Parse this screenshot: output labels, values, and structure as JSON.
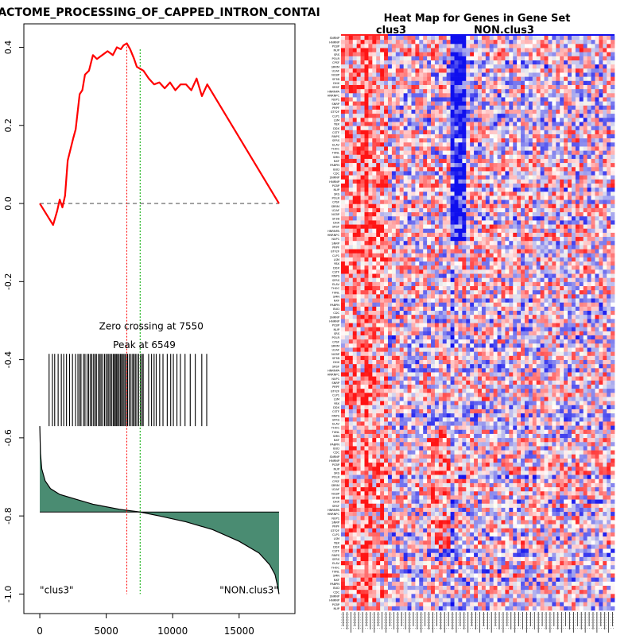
{
  "chart_data": [
    {
      "type": "line",
      "title": "ACTOME_PROCESSING_OF_CAPPED_INTRON_CONTAI",
      "xlabel": "",
      "ylabel": "",
      "xlim": [
        -1200,
        19200
      ],
      "ylim": [
        -1.05,
        0.46
      ],
      "x_ticks": [
        0,
        5000,
        10000,
        15000
      ],
      "x_tick_labels": [
        "0",
        "5000",
        "10000",
        "15000"
      ],
      "y_ticks": [
        0.4,
        0.2,
        0.0,
        -0.2,
        -0.4,
        -0.6,
        -0.8,
        -1.0
      ],
      "y_tick_labels": [
        "0.4",
        "0.2",
        "0.0",
        "-0.2",
        "-0.4",
        "-0.6",
        "-0.8",
        "-1.0"
      ],
      "running_es": {
        "name": "Enrichment score",
        "color": "#ff0000",
        "x": [
          0,
          1000,
          1300,
          1500,
          1700,
          1900,
          2100,
          2500,
          2700,
          3000,
          3200,
          3400,
          3700,
          4000,
          4300,
          4700,
          5100,
          5500,
          5800,
          6100,
          6300,
          6549,
          6800,
          7100,
          7300,
          7550,
          7800,
          8200,
          8600,
          9000,
          9400,
          9800,
          10200,
          10600,
          11000,
          11400,
          11800,
          12200,
          12600,
          18000
        ],
        "y": [
          0.0,
          -0.055,
          -0.02,
          0.01,
          -0.01,
          0.02,
          0.11,
          0.165,
          0.19,
          0.28,
          0.29,
          0.33,
          0.34,
          0.38,
          0.37,
          0.38,
          0.39,
          0.38,
          0.4,
          0.395,
          0.405,
          0.41,
          0.395,
          0.37,
          0.35,
          0.345,
          0.34,
          0.32,
          0.305,
          0.31,
          0.295,
          0.31,
          0.29,
          0.305,
          0.305,
          0.29,
          0.32,
          0.275,
          0.305,
          0.0
        ]
      },
      "baseline": {
        "y": 0.0,
        "style": "dashed"
      },
      "peak": {
        "x": 6549,
        "label": "Peak at 6549",
        "color": "#ff0000"
      },
      "zero_crossing": {
        "x": 7550,
        "label": "Zero crossing at 7550",
        "color": "#00aa00"
      },
      "hits": {
        "y_range": [
          -0.57,
          -0.385
        ],
        "positions": [
          700,
          950,
          1120,
          1380,
          1620,
          1800,
          2010,
          2240,
          2460,
          2690,
          2870,
          3000,
          3100,
          3290,
          3400,
          3560,
          3680,
          3810,
          3920,
          4050,
          4160,
          4260,
          4400,
          4520,
          4610,
          4730,
          4870,
          4980,
          5090,
          5190,
          5290,
          5400,
          5520,
          5610,
          5690,
          5780,
          5860,
          5960,
          6060,
          6140,
          6240,
          6330,
          6420,
          6530,
          6610,
          6730,
          6860,
          6990,
          7080,
          7190,
          7300,
          7440,
          7570,
          7690,
          7780,
          8190,
          8410,
          8600,
          8760,
          9020,
          9270,
          9590,
          9850,
          10050,
          10320,
          10580,
          10930,
          11320,
          11700,
          12190,
          12560
        ]
      },
      "ranked_metric": {
        "fill": "#4a8c72",
        "baseline_y": -0.79,
        "crossing_x": 7550,
        "x": [
          0,
          50,
          150,
          400,
          800,
          1500,
          2500,
          4000,
          6000,
          7550,
          9000,
          11000,
          13000,
          15000,
          16500,
          17300,
          17700,
          17900,
          18000
        ],
        "y": [
          -0.57,
          -0.64,
          -0.68,
          -0.71,
          -0.73,
          -0.745,
          -0.755,
          -0.77,
          -0.783,
          -0.79,
          -0.8,
          -0.815,
          -0.835,
          -0.865,
          -0.895,
          -0.925,
          -0.95,
          -0.98,
          -1.0
        ]
      },
      "annotations": [
        {
          "text": "\"clus3\"",
          "x": 0,
          "y": -1.0,
          "anchor": "start"
        },
        {
          "text": "\"NON.clus3\"",
          "x": 18000,
          "y": -1.0,
          "anchor": "end"
        }
      ]
    },
    {
      "type": "heatmap",
      "title": "Heat Map for Genes in Gene Set",
      "groups": [
        {
          "label": "clus3",
          "color": "#ff2020",
          "columns": 12
        },
        {
          "label": "NON.clus3",
          "color": "#1010ee",
          "columns": 58
        }
      ],
      "n_rows": 140,
      "n_cols": 70,
      "row_labels": [
        "SNRNP",
        "HNRNP",
        "PCBP",
        "NUP",
        "SRS",
        "POLR",
        "CPSF",
        "SRRM",
        "U2AF",
        "NCBP",
        "SF3B",
        "DHX",
        "SRSF",
        "HNRNPA",
        "HNRNPC",
        "NUP1",
        "SNRP",
        "PRPF",
        "GTF2F",
        "CLP1",
        "LSM",
        "YBX",
        "DDX",
        "CSTF",
        "RNPS",
        "SFRS",
        "ELAV",
        "THOC",
        "TXNL",
        "SMN",
        "NXF",
        "PABPN",
        "BUD",
        "CDC"
      ],
      "scale_colors": [
        "#1010ee",
        "#ffffff",
        "#ff1010"
      ]
    }
  ]
}
